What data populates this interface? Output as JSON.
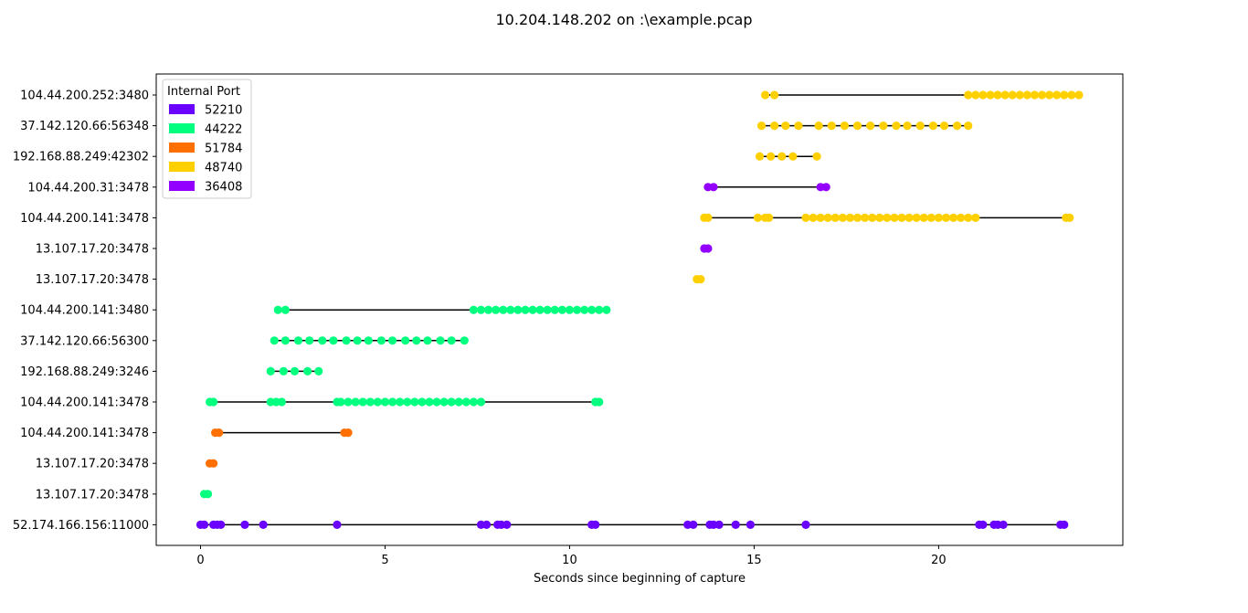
{
  "chart_data": {
    "type": "scatter",
    "title": "10.204.148.202 on :\\example.pcap",
    "xlabel": "Seconds since beginning of capture",
    "ylabel": "",
    "xlim": [
      -1.2,
      24.99
    ],
    "x_ticks": [
      0,
      5,
      10,
      15,
      20
    ],
    "x_tick_labels": [
      "0",
      "5",
      "10",
      "15",
      "20"
    ],
    "grid": false,
    "legend": {
      "title": "Internal Port",
      "placement": "top-left"
    },
    "categories": [
      "52.174.166.156:11000",
      "13.107.17.20:3478",
      "13.107.17.20:3478",
      "104.44.200.141:3478",
      "104.44.200.141:3478",
      "192.168.88.249:3246",
      "37.142.120.66:56300",
      "104.44.200.141:3480",
      "13.107.17.20:3478",
      "13.107.17.20:3478",
      "104.44.200.141:3478",
      "104.44.200.31:3478",
      "192.168.88.249:42302",
      "37.142.120.66:56348",
      "104.44.200.252:3480"
    ],
    "series": [
      {
        "name": "52210",
        "color": "#6a00ff",
        "rows": [
          0
        ],
        "points": [
          [
            0,
            0.0,
            0.1,
            0.35,
            0.45,
            0.55,
            1.2,
            1.7,
            3.7,
            7.6,
            7.75,
            8.05,
            8.15,
            8.3,
            10.6,
            10.7,
            13.2,
            13.35,
            13.8,
            13.9,
            14.05,
            14.5,
            14.9,
            16.4,
            21.1,
            21.2,
            21.5,
            21.6,
            21.75,
            23.3,
            23.4
          ]
        ]
      },
      {
        "name": "44222",
        "color": "#00ff7f",
        "rows": [
          1,
          4,
          5,
          6,
          7
        ],
        "points": [
          [
            1,
            0.1,
            0.2
          ],
          [
            4,
            0.25,
            0.35,
            1.9,
            2.05,
            2.2,
            3.7,
            3.8,
            4.0,
            4.2,
            4.4,
            4.6,
            4.8,
            5.0,
            5.2,
            5.4,
            5.6,
            5.8,
            6.0,
            6.2,
            6.4,
            6.6,
            6.8,
            7.0,
            7.2,
            7.4,
            7.6,
            10.7,
            10.8
          ],
          [
            5,
            1.9,
            2.25,
            2.55,
            2.9,
            3.2
          ],
          [
            6,
            2.0,
            2.3,
            2.65,
            2.95,
            3.3,
            3.6,
            3.95,
            4.25,
            4.55,
            4.9,
            5.2,
            5.55,
            5.85,
            6.15,
            6.5,
            6.8,
            7.15
          ],
          [
            7,
            2.1,
            2.3,
            7.4,
            7.6,
            7.8,
            8.0,
            8.2,
            8.4,
            8.6,
            8.8,
            9.0,
            9.2,
            9.4,
            9.6,
            9.8,
            10.0,
            10.2,
            10.4,
            10.6,
            10.8,
            11.0
          ]
        ]
      },
      {
        "name": "51784",
        "color": "#ff7000",
        "rows": [
          2,
          3
        ],
        "points": [
          [
            2,
            0.25,
            0.35
          ],
          [
            3,
            0.4,
            0.5,
            3.9,
            4.0
          ]
        ]
      },
      {
        "name": "48740",
        "color": "#ffd000",
        "rows": [
          8,
          10,
          12,
          13,
          14
        ],
        "points": [
          [
            8,
            13.45,
            13.55
          ],
          [
            10,
            13.65,
            13.75,
            15.1,
            15.3,
            15.4,
            16.4,
            16.6,
            16.8,
            17.0,
            17.2,
            17.4,
            17.6,
            17.8,
            18.0,
            18.2,
            18.4,
            18.6,
            18.8,
            19.0,
            19.2,
            19.4,
            19.6,
            19.8,
            20.0,
            20.2,
            20.4,
            20.6,
            20.8,
            21.0,
            23.45,
            23.55
          ],
          [
            12,
            15.15,
            15.45,
            15.75,
            16.05,
            16.7
          ],
          [
            13,
            15.2,
            15.55,
            15.85,
            16.2,
            16.75,
            17.1,
            17.45,
            17.8,
            18.15,
            18.5,
            18.85,
            19.15,
            19.5,
            19.85,
            20.15,
            20.5,
            20.8
          ],
          [
            14,
            15.3,
            15.55,
            20.8,
            21.0,
            21.2,
            21.4,
            21.6,
            21.8,
            22.0,
            22.2,
            22.4,
            22.6,
            22.8,
            23.0,
            23.2,
            23.4,
            23.6,
            23.8
          ]
        ]
      },
      {
        "name": "36408",
        "color": "#9400ff",
        "rows": [
          9,
          11
        ],
        "points": [
          [
            9,
            13.65,
            13.75
          ],
          [
            11,
            13.75,
            13.9,
            16.8,
            16.95
          ]
        ]
      }
    ]
  }
}
